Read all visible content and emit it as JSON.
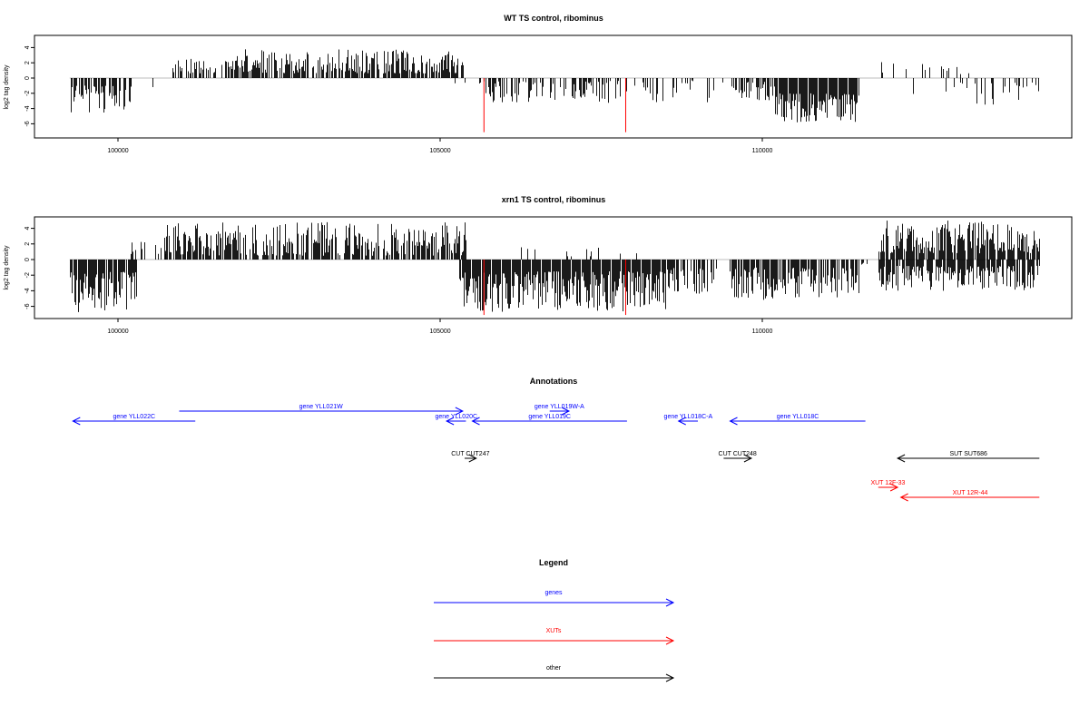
{
  "chart_data": [
    {
      "type": "bar",
      "title": "WT TS control, ribominus",
      "ylabel": "log2 tag density",
      "xlim": [
        98800,
        114900
      ],
      "ylim": [
        -7.2,
        5.5
      ],
      "xticks": [
        100000,
        105000,
        110000
      ],
      "xtick_labels": [
        "100000",
        "105000",
        "110000"
      ],
      "yticks": [
        4,
        2,
        0,
        -2,
        -4,
        -6
      ],
      "ytick_labels": [
        "4",
        "2",
        "0",
        "-2",
        "-4",
        "-6"
      ],
      "segments": [
        {
          "from": 99250,
          "to": 100200,
          "sign": -1,
          "min": 1,
          "max": 4.6,
          "density": 0.8
        },
        {
          "from": 100200,
          "to": 100800,
          "sign": -1,
          "min": 1,
          "max": 1.4,
          "density": 0.1
        },
        {
          "from": 100800,
          "to": 101800,
          "sign": 1,
          "min": 0.6,
          "max": 2.6,
          "density": 0.5
        },
        {
          "from": 101800,
          "to": 105350,
          "sign": 1,
          "min": 0.6,
          "max": 3.8,
          "density": 0.8
        },
        {
          "from": 105200,
          "to": 105400,
          "sign": -1,
          "min": 0.5,
          "max": 1.2,
          "density": 0.2
        },
        {
          "from": 105600,
          "to": 107500,
          "sign": -1,
          "min": 0.4,
          "max": 3.2,
          "density": 0.6
        },
        {
          "from": 107500,
          "to": 109400,
          "sign": -1,
          "min": 0.3,
          "max": 3.3,
          "density": 0.3
        },
        {
          "from": 109500,
          "to": 110200,
          "sign": -1,
          "min": 0.5,
          "max": 3.0,
          "density": 0.7
        },
        {
          "from": 110200,
          "to": 111500,
          "sign": -1,
          "min": 2.0,
          "max": 5.8,
          "density": 1.0
        },
        {
          "from": 111500,
          "to": 112200,
          "sign": 1,
          "min": 0.6,
          "max": 3.2,
          "density": 0.05
        },
        {
          "from": 112200,
          "to": 113300,
          "sign": 1,
          "min": 0.5,
          "max": 2.0,
          "density": 0.15
        },
        {
          "from": 112200,
          "to": 113300,
          "sign": -1,
          "min": 0.5,
          "max": 2.2,
          "density": 0.15
        },
        {
          "from": 113300,
          "to": 114300,
          "sign": -1,
          "min": 0.5,
          "max": 3.5,
          "density": 0.3
        }
      ],
      "red_lines": [
        {
          "x": 105680,
          "y": -7.1
        },
        {
          "x": 107880,
          "y": -7.1
        }
      ]
    },
    {
      "type": "bar",
      "title": "xrn1 TS control, ribominus",
      "ylabel": "log2 tag density",
      "xlim": [
        98800,
        114900
      ],
      "ylim": [
        -7.2,
        5.5
      ],
      "xticks": [
        100000,
        105000,
        110000
      ],
      "xtick_labels": [
        "100000",
        "105000",
        "110000"
      ],
      "yticks": [
        4,
        2,
        0,
        -2,
        -4,
        -6
      ],
      "ytick_labels": [
        "4",
        "2",
        "0",
        "-2",
        "-4",
        "-6"
      ],
      "segments": [
        {
          "from": 99250,
          "to": 100300,
          "sign": -1,
          "min": 1.5,
          "max": 6.8,
          "density": 0.9
        },
        {
          "from": 100100,
          "to": 100800,
          "sign": 1,
          "min": 0.5,
          "max": 2.4,
          "density": 0.2
        },
        {
          "from": 100700,
          "to": 105400,
          "sign": 1,
          "min": 0.5,
          "max": 4.8,
          "density": 0.8
        },
        {
          "from": 105300,
          "to": 108500,
          "sign": -1,
          "min": 1.5,
          "max": 6.8,
          "density": 1.0
        },
        {
          "from": 106000,
          "to": 108200,
          "sign": 1,
          "min": 0.4,
          "max": 1.6,
          "density": 0.08
        },
        {
          "from": 108500,
          "to": 109300,
          "sign": -1,
          "min": 1.0,
          "max": 4.5,
          "density": 0.6
        },
        {
          "from": 109500,
          "to": 111500,
          "sign": -1,
          "min": 1.0,
          "max": 5.2,
          "density": 0.8
        },
        {
          "from": 111500,
          "to": 111700,
          "sign": -1,
          "min": 0.3,
          "max": 1.0,
          "density": 0.3
        },
        {
          "from": 111800,
          "to": 114300,
          "sign": 1,
          "min": 0.8,
          "max": 5.0,
          "density": 0.9
        },
        {
          "from": 111800,
          "to": 114300,
          "sign": -1,
          "min": 0.8,
          "max": 4.0,
          "density": 0.9
        }
      ],
      "red_lines": [
        {
          "x": 105680,
          "y": -7.1
        },
        {
          "x": 107880,
          "y": -7.1
        }
      ]
    }
  ],
  "annotations": {
    "title": "Annotations",
    "items": [
      {
        "label": "gene YLL022C",
        "from": 101200,
        "to": 99300,
        "row": 1,
        "color": "blue"
      },
      {
        "label": "gene YLL021W",
        "from": 100950,
        "to": 105350,
        "row": 0,
        "color": "blue"
      },
      {
        "label": "gene YLL019W-A",
        "from": 106700,
        "to": 107000,
        "row": 0,
        "color": "blue"
      },
      {
        "label": "gene YLL020C",
        "from": 105400,
        "to": 105100,
        "row": 1,
        "color": "blue"
      },
      {
        "label": "gene YLL019C",
        "from": 107900,
        "to": 105500,
        "row": 1,
        "color": "blue"
      },
      {
        "label": "gene YLL018C-A",
        "from": 109000,
        "to": 108700,
        "row": 1,
        "color": "blue"
      },
      {
        "label": "gene YLL018C",
        "from": 111600,
        "to": 109500,
        "row": 1,
        "color": "blue"
      },
      {
        "label": "CUT CUT247",
        "from": 105380,
        "to": 105560,
        "row": 2,
        "color": "black"
      },
      {
        "label": "CUT CUT248",
        "from": 109400,
        "to": 109830,
        "row": 2,
        "color": "black"
      },
      {
        "label": "SUT SUT686",
        "from": 114300,
        "to": 112100,
        "row": 2,
        "color": "black"
      },
      {
        "label": "XUT 12F-33",
        "from": 111800,
        "to": 112100,
        "row": 3,
        "color": "red"
      },
      {
        "label": "XUT 12R-44",
        "from": 114300,
        "to": 112150,
        "row": 4,
        "color": "red"
      }
    ]
  },
  "legend": {
    "title": "Legend",
    "items": [
      {
        "label": "genes",
        "color": "blue"
      },
      {
        "label": "XUTs",
        "color": "red"
      },
      {
        "label": "other",
        "color": "black"
      }
    ]
  },
  "colors": {
    "blue": "#0000ff",
    "red": "#ff0000",
    "black": "#000000",
    "bar": "#000000",
    "zero_line": "#bebebe"
  }
}
